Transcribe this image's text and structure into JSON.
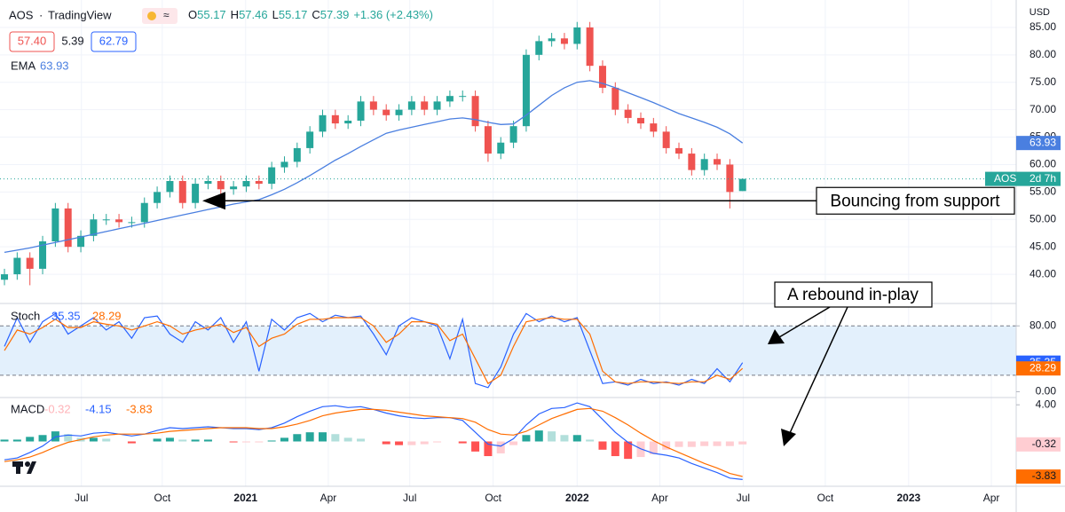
{
  "header": {
    "symbol": "AOS",
    "source": "TradingView",
    "ohlc": [
      "O",
      "55.17",
      "H",
      "57.46",
      "L",
      "55.17",
      "C",
      "57.39",
      "+1.36 (+2.43%)"
    ],
    "bid": "57.40",
    "spread": "5.39",
    "ask": "62.79",
    "currency": "USD"
  },
  "chart_data": [
    {
      "type": "candlestick",
      "grid": true,
      "up_color": "#26a69a",
      "down_color": "#ef5350",
      "x": [
        0,
        2,
        4,
        6,
        8,
        10,
        12,
        14,
        16,
        18,
        20,
        22,
        24,
        26,
        28,
        30,
        32,
        34,
        36,
        38,
        40,
        42,
        44,
        46,
        48,
        50,
        52,
        54,
        56,
        58,
        60,
        62,
        64,
        66,
        68,
        70,
        72,
        74,
        76,
        78,
        80,
        82,
        84,
        86,
        88,
        90,
        92,
        94,
        96,
        98,
        100,
        102,
        104,
        106,
        108,
        110,
        112,
        114,
        116
      ],
      "xlim": [
        -0.7,
        159
      ],
      "xticks": [
        {
          "value": 12.1,
          "label": "Jul"
        },
        {
          "value": 24.8,
          "label": "Oct"
        },
        {
          "value": 37.9,
          "label": "2021"
        },
        {
          "value": 50.9,
          "label": "Apr"
        },
        {
          "value": 63.7,
          "label": "Jul"
        },
        {
          "value": 76.8,
          "label": "Oct"
        },
        {
          "value": 90,
          "label": "2022"
        },
        {
          "value": 103,
          "label": "Apr"
        },
        {
          "value": 116.1,
          "label": "Jul"
        },
        {
          "value": 129,
          "label": "Oct"
        },
        {
          "value": 142.1,
          "label": "2023"
        },
        {
          "value": 155.1,
          "label": "Apr"
        }
      ],
      "open": [
        39,
        40,
        43,
        41,
        46,
        52,
        45,
        47,
        50,
        50,
        49.5,
        49.5,
        53,
        55,
        57,
        53,
        56.5,
        57,
        55.5,
        56,
        57,
        56.5,
        59.5,
        60.5,
        63,
        66,
        69,
        67.5,
        68,
        71.5,
        70,
        69,
        70,
        71.5,
        70,
        71.5,
        72.5,
        72.5,
        67,
        62,
        64,
        67,
        80,
        82.5,
        83,
        82,
        85,
        78,
        74,
        70,
        68.5,
        67.5,
        66,
        63,
        62,
        59,
        61,
        60,
        55.17
      ],
      "high": [
        41,
        44,
        44,
        47,
        53,
        53,
        48,
        51,
        51,
        51,
        50.5,
        54,
        56,
        58,
        58,
        57.5,
        58,
        58,
        57,
        58,
        58,
        60.5,
        61.5,
        64,
        67,
        70,
        70,
        69,
        72.5,
        72.5,
        71,
        71,
        72.5,
        72.5,
        72.5,
        73.5,
        73.5,
        73.5,
        68,
        65,
        68,
        81,
        83.5,
        84,
        84,
        86,
        86,
        79,
        75,
        71,
        69.5,
        68.5,
        67,
        64,
        63,
        62,
        62,
        61,
        57.46
      ],
      "low": [
        38,
        39,
        38,
        40,
        45,
        44,
        44,
        46,
        49,
        48.5,
        48.5,
        48.5,
        52,
        54,
        52,
        52,
        55.5,
        54.5,
        54.5,
        55,
        55.5,
        55.5,
        58.5,
        59.5,
        62,
        65,
        66.5,
        66.5,
        67,
        69,
        68,
        68,
        69,
        69,
        69,
        70.5,
        71.5,
        66,
        60.5,
        61,
        63,
        66,
        79,
        81.5,
        81,
        81,
        77,
        73,
        69,
        67.5,
        66.5,
        65,
        62,
        61,
        58,
        58,
        59,
        52,
        55.17
      ],
      "close": [
        40,
        43,
        41,
        46,
        52,
        45,
        47,
        50,
        50,
        49.5,
        49.5,
        53,
        55,
        57,
        53,
        56.5,
        57,
        55.5,
        56,
        57,
        56.5,
        59.5,
        60.5,
        63,
        66,
        69,
        67.5,
        68,
        71.5,
        70,
        69,
        70,
        71.5,
        70,
        71.5,
        72.5,
        72.5,
        67,
        62,
        64,
        67,
        80,
        82.5,
        83,
        82,
        85,
        78,
        74,
        70,
        68.5,
        67.5,
        66,
        63,
        62,
        59,
        61,
        60,
        55,
        57.39
      ],
      "series": [
        {
          "name": "EMA",
          "color": "#4a7fe0",
          "values": [
            44,
            44.4,
            44.8,
            45.3,
            45.8,
            46.3,
            46.8,
            47.3,
            47.8,
            48.3,
            48.8,
            49.3,
            49.8,
            50.3,
            50.8,
            51.3,
            51.8,
            52.3,
            52.8,
            53.2,
            53.6,
            54.5,
            55.5,
            56.7,
            58,
            59.4,
            60.8,
            62,
            63.3,
            64.5,
            65.7,
            66.3,
            66.8,
            67.3,
            67.8,
            68.3,
            68.5,
            68.2,
            67.7,
            67.3,
            67.4,
            69,
            70.8,
            72.6,
            74,
            75,
            75.3,
            74.8,
            74,
            73.1,
            72.2,
            71.3,
            70.3,
            69.3,
            68.5,
            67.7,
            66.8,
            65.6,
            63.93
          ]
        }
      ],
      "ylim": [
        35,
        90
      ],
      "yticks": [
        {
          "value": 40,
          "label": "40.00"
        },
        {
          "value": 45,
          "label": "45.00"
        },
        {
          "value": 50,
          "label": "50.00"
        },
        {
          "value": 55,
          "label": "55.00"
        },
        {
          "value": 60,
          "label": "60.00"
        },
        {
          "value": 65,
          "label": "65.00"
        },
        {
          "value": 70,
          "label": "70.00"
        },
        {
          "value": 75,
          "label": "75.00"
        },
        {
          "value": 80,
          "label": "80.00"
        },
        {
          "value": 85,
          "label": "85.00"
        }
      ],
      "price_tag": [
        "AOS",
        "2d 7h"
      ],
      "support_level": 53.4,
      "annotation": "Bouncing from support"
    },
    {
      "type": "line",
      "title": "Stoch",
      "band": [
        20,
        80
      ],
      "band_color": "#e3f0fc",
      "series": [
        {
          "color": "#2962ff",
          "values": [
            55,
            90,
            60,
            85,
            95,
            70,
            80,
            90,
            75,
            85,
            65,
            90,
            92,
            70,
            60,
            85,
            75,
            90,
            60,
            85,
            25,
            88,
            75,
            90,
            95,
            85,
            93,
            90,
            92,
            70,
            45,
            80,
            90,
            85,
            80,
            40,
            88,
            10,
            5,
            30,
            70,
            95,
            85,
            92,
            85,
            90,
            50,
            10,
            12,
            8,
            15,
            10,
            12,
            8,
            15,
            10,
            28,
            12,
            35.35
          ]
        },
        {
          "color": "#ff6d00",
          "values": [
            50,
            75,
            70,
            78,
            88,
            78,
            78,
            85,
            82,
            80,
            75,
            80,
            85,
            80,
            70,
            75,
            78,
            82,
            72,
            78,
            55,
            65,
            70,
            82,
            88,
            88,
            90,
            90,
            90,
            80,
            60,
            70,
            85,
            85,
            82,
            62,
            70,
            40,
            10,
            20,
            55,
            85,
            88,
            90,
            88,
            88,
            70,
            25,
            12,
            10,
            12,
            12,
            11,
            10,
            12,
            12,
            20,
            15,
            28.29
          ]
        }
      ],
      "ylim": [
        -6,
        104
      ],
      "yticks": [
        {
          "value": 0,
          "label": "0.00"
        },
        {
          "value": 80,
          "label": "80.00"
        }
      ],
      "annotation": "A rebound in-play"
    },
    {
      "type": "line",
      "title": "MACD",
      "series": [
        {
          "type": "bar",
          "color": "#26a69a",
          "down_color": "#ff5252",
          "values": [
            0.2,
            0.2,
            0.5,
            0.7,
            1.1,
            0.8,
            0.4,
            0.4,
            0.3,
            0,
            -0.2,
            0,
            0.3,
            0.4,
            0.2,
            0.2,
            0.2,
            0,
            -0.1,
            -0.1,
            -0.1,
            0.1,
            0.4,
            0.8,
            1,
            1,
            0.8,
            0.4,
            0.3,
            0,
            -0.3,
            -0.4,
            -0.4,
            -0.3,
            -0.1,
            0,
            -0.2,
            -1.1,
            -1.6,
            -1.3,
            -0.4,
            0.7,
            1.2,
            1.1,
            0.7,
            0.7,
            0.2,
            -0.9,
            -1.6,
            -1.9,
            -1.7,
            -1.4,
            -0.9,
            -0.6,
            -0.6,
            -0.5,
            -0.5,
            -0.5,
            -0.32
          ]
        },
        {
          "color": "#2962ff",
          "values": [
            -2,
            -1.8,
            -1.2,
            -0.5,
            0.5,
            0.7,
            0.6,
            0.9,
            1,
            0.8,
            0.6,
            0.8,
            1.2,
            1.5,
            1.4,
            1.5,
            1.6,
            1.5,
            1.4,
            1.4,
            1.3,
            1.5,
            2,
            2.7,
            3.3,
            3.8,
            3.9,
            3.7,
            3.8,
            3.5,
            3.1,
            2.8,
            2.6,
            2.5,
            2.6,
            2.6,
            2.3,
            1,
            -0.3,
            -0.5,
            0.3,
            1.8,
            3,
            3.6,
            3.7,
            4.2,
            3.8,
            2.4,
            1,
            -0.1,
            -0.8,
            -1.3,
            -1.5,
            -1.8,
            -2.4,
            -2.9,
            -3.4,
            -4,
            -4.15
          ]
        },
        {
          "color": "#ff6d00",
          "values": [
            -2.2,
            -2,
            -1.7,
            -1.2,
            -0.6,
            -0.1,
            0.2,
            0.5,
            0.7,
            0.8,
            0.8,
            0.8,
            0.9,
            1.1,
            1.2,
            1.3,
            1.4,
            1.5,
            1.5,
            1.5,
            1.4,
            1.4,
            1.6,
            1.9,
            2.3,
            2.8,
            3.1,
            3.3,
            3.5,
            3.5,
            3.4,
            3.2,
            3,
            2.8,
            2.7,
            2.6,
            2.5,
            2.1,
            1.3,
            0.8,
            0.7,
            1.1,
            1.8,
            2.5,
            3,
            3.5,
            3.6,
            3.3,
            2.6,
            1.8,
            0.9,
            0.1,
            -0.6,
            -1.2,
            -1.8,
            -2.4,
            -2.9,
            -3.5,
            -3.83
          ]
        }
      ],
      "ylim": [
        -4.6,
        4.6
      ],
      "yticks": [
        {
          "value": 4,
          "label": "4.00"
        }
      ]
    }
  ]
}
